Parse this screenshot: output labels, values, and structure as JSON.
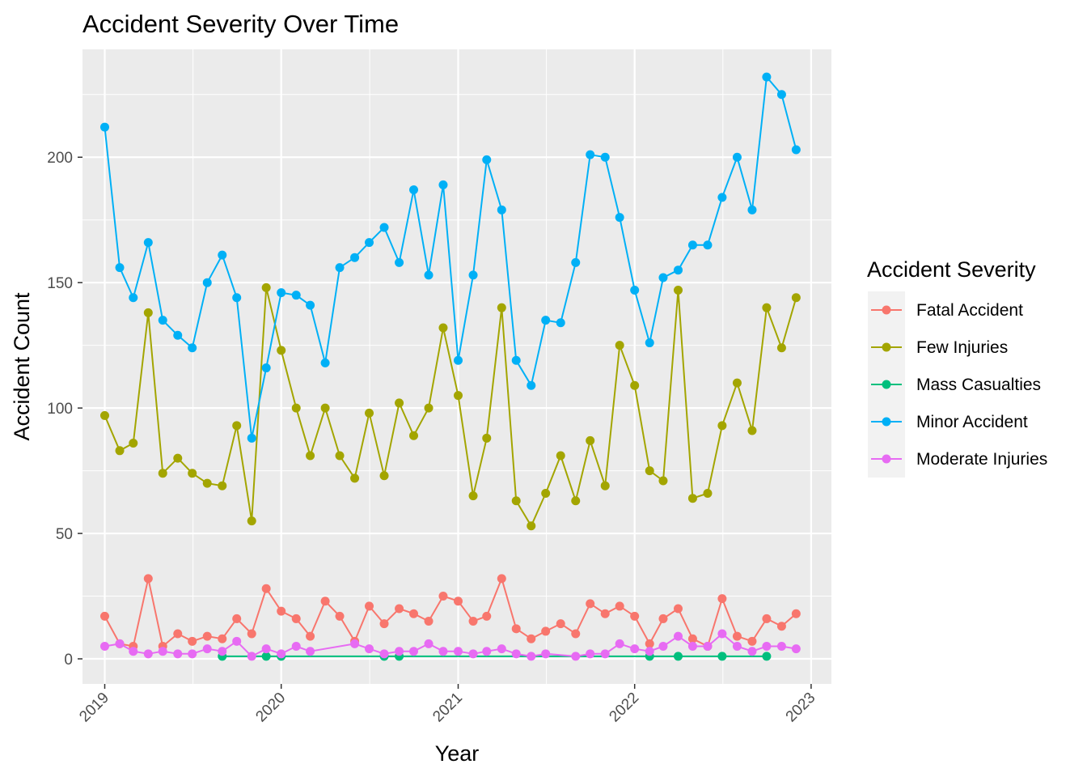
{
  "chart_data": {
    "type": "line",
    "title": "Accident Severity Over Time",
    "xlabel": "Year",
    "ylabel": "Accident Count",
    "x_ticks": [
      "2019",
      "2020",
      "2021",
      "2022",
      "2023"
    ],
    "y_ticks": [
      0,
      50,
      100,
      150,
      200
    ],
    "xlim": [
      "2018-11-16",
      "2023-02-12"
    ],
    "ylim": [
      -10,
      243
    ],
    "grid": true,
    "legend_title": "Accident Severity",
    "legend_position": "right",
    "series": [
      {
        "name": "Fatal Accident",
        "color": "#F8766D",
        "points": [
          [
            "2019-01-01",
            17
          ],
          [
            "2019-02-01",
            6
          ],
          [
            "2019-03-01",
            5
          ],
          [
            "2019-04-01",
            32
          ],
          [
            "2019-05-01",
            5
          ],
          [
            "2019-06-01",
            10
          ],
          [
            "2019-07-01",
            7
          ],
          [
            "2019-08-01",
            9
          ],
          [
            "2019-09-01",
            8
          ],
          [
            "2019-10-01",
            16
          ],
          [
            "2019-11-01",
            10
          ],
          [
            "2019-12-01",
            28
          ],
          [
            "2020-01-01",
            19
          ],
          [
            "2020-02-01",
            16
          ],
          [
            "2020-03-01",
            9
          ],
          [
            "2020-04-01",
            23
          ],
          [
            "2020-05-01",
            17
          ],
          [
            "2020-06-01",
            7
          ],
          [
            "2020-07-01",
            21
          ],
          [
            "2020-08-01",
            14
          ],
          [
            "2020-09-01",
            20
          ],
          [
            "2020-10-01",
            18
          ],
          [
            "2020-11-01",
            15
          ],
          [
            "2020-12-01",
            25
          ],
          [
            "2021-01-01",
            23
          ],
          [
            "2021-02-01",
            15
          ],
          [
            "2021-03-01",
            17
          ],
          [
            "2021-04-01",
            32
          ],
          [
            "2021-05-01",
            12
          ],
          [
            "2021-06-01",
            8
          ],
          [
            "2021-07-01",
            11
          ],
          [
            "2021-08-01",
            14
          ],
          [
            "2021-09-01",
            10
          ],
          [
            "2021-10-01",
            22
          ],
          [
            "2021-11-01",
            18
          ],
          [
            "2021-12-01",
            21
          ],
          [
            "2022-01-01",
            17
          ],
          [
            "2022-02-01",
            6
          ],
          [
            "2022-03-01",
            16
          ],
          [
            "2022-04-01",
            20
          ],
          [
            "2022-05-01",
            8
          ],
          [
            "2022-06-01",
            5
          ],
          [
            "2022-07-01",
            24
          ],
          [
            "2022-08-01",
            9
          ],
          [
            "2022-09-01",
            7
          ],
          [
            "2022-10-01",
            16
          ],
          [
            "2022-11-01",
            13
          ],
          [
            "2022-12-01",
            18
          ]
        ]
      },
      {
        "name": "Few Injuries",
        "color": "#A3A500",
        "points": [
          [
            "2019-01-01",
            97
          ],
          [
            "2019-02-01",
            83
          ],
          [
            "2019-03-01",
            86
          ],
          [
            "2019-04-01",
            138
          ],
          [
            "2019-05-01",
            74
          ],
          [
            "2019-06-01",
            80
          ],
          [
            "2019-07-01",
            74
          ],
          [
            "2019-08-01",
            70
          ],
          [
            "2019-09-01",
            69
          ],
          [
            "2019-10-01",
            93
          ],
          [
            "2019-11-01",
            55
          ],
          [
            "2019-12-01",
            148
          ],
          [
            "2020-01-01",
            123
          ],
          [
            "2020-02-01",
            100
          ],
          [
            "2020-03-01",
            81
          ],
          [
            "2020-04-01",
            100
          ],
          [
            "2020-05-01",
            81
          ],
          [
            "2020-06-01",
            72
          ],
          [
            "2020-07-01",
            98
          ],
          [
            "2020-08-01",
            73
          ],
          [
            "2020-09-01",
            102
          ],
          [
            "2020-10-01",
            89
          ],
          [
            "2020-11-01",
            100
          ],
          [
            "2020-12-01",
            132
          ],
          [
            "2021-01-01",
            105
          ],
          [
            "2021-02-01",
            65
          ],
          [
            "2021-03-01",
            88
          ],
          [
            "2021-04-01",
            140
          ],
          [
            "2021-05-01",
            63
          ],
          [
            "2021-06-01",
            53
          ],
          [
            "2021-07-01",
            66
          ],
          [
            "2021-08-01",
            81
          ],
          [
            "2021-09-01",
            63
          ],
          [
            "2021-10-01",
            87
          ],
          [
            "2021-11-01",
            69
          ],
          [
            "2021-12-01",
            125
          ],
          [
            "2022-01-01",
            109
          ],
          [
            "2022-02-01",
            75
          ],
          [
            "2022-03-01",
            71
          ],
          [
            "2022-04-01",
            147
          ],
          [
            "2022-05-01",
            64
          ],
          [
            "2022-06-01",
            66
          ],
          [
            "2022-07-01",
            93
          ],
          [
            "2022-08-01",
            110
          ],
          [
            "2022-09-01",
            91
          ],
          [
            "2022-10-01",
            140
          ],
          [
            "2022-11-01",
            124
          ],
          [
            "2022-12-01",
            144
          ]
        ]
      },
      {
        "name": "Mass Casualties",
        "color": "#00BF7D",
        "points": [
          [
            "2019-09-01",
            1
          ],
          [
            "2019-12-01",
            1
          ],
          [
            "2020-01-01",
            1
          ],
          [
            "2020-08-01",
            1
          ],
          [
            "2020-09-01",
            1
          ],
          [
            "2022-02-01",
            1
          ],
          [
            "2022-04-01",
            1
          ],
          [
            "2022-07-01",
            1
          ],
          [
            "2022-10-01",
            1
          ]
        ]
      },
      {
        "name": "Minor Accident",
        "color": "#00B0F6",
        "points": [
          [
            "2019-01-01",
            212
          ],
          [
            "2019-02-01",
            156
          ],
          [
            "2019-03-01",
            144
          ],
          [
            "2019-04-01",
            166
          ],
          [
            "2019-05-01",
            135
          ],
          [
            "2019-06-01",
            129
          ],
          [
            "2019-07-01",
            124
          ],
          [
            "2019-08-01",
            150
          ],
          [
            "2019-09-01",
            161
          ],
          [
            "2019-10-01",
            144
          ],
          [
            "2019-11-01",
            88
          ],
          [
            "2019-12-01",
            116
          ],
          [
            "2020-01-01",
            146
          ],
          [
            "2020-02-01",
            145
          ],
          [
            "2020-03-01",
            141
          ],
          [
            "2020-04-01",
            118
          ],
          [
            "2020-05-01",
            156
          ],
          [
            "2020-06-01",
            160
          ],
          [
            "2020-07-01",
            166
          ],
          [
            "2020-08-01",
            172
          ],
          [
            "2020-09-01",
            158
          ],
          [
            "2020-10-01",
            187
          ],
          [
            "2020-11-01",
            153
          ],
          [
            "2020-12-01",
            189
          ],
          [
            "2021-01-01",
            119
          ],
          [
            "2021-02-01",
            153
          ],
          [
            "2021-03-01",
            199
          ],
          [
            "2021-04-01",
            179
          ],
          [
            "2021-05-01",
            119
          ],
          [
            "2021-06-01",
            109
          ],
          [
            "2021-07-01",
            135
          ],
          [
            "2021-08-01",
            134
          ],
          [
            "2021-09-01",
            158
          ],
          [
            "2021-10-01",
            201
          ],
          [
            "2021-11-01",
            200
          ],
          [
            "2021-12-01",
            176
          ],
          [
            "2022-01-01",
            147
          ],
          [
            "2022-02-01",
            126
          ],
          [
            "2022-03-01",
            152
          ],
          [
            "2022-04-01",
            155
          ],
          [
            "2022-05-01",
            165
          ],
          [
            "2022-06-01",
            165
          ],
          [
            "2022-07-01",
            184
          ],
          [
            "2022-08-01",
            200
          ],
          [
            "2022-09-01",
            179
          ],
          [
            "2022-10-01",
            232
          ],
          [
            "2022-11-01",
            225
          ],
          [
            "2022-12-01",
            203
          ]
        ]
      },
      {
        "name": "Moderate Injuries",
        "color": "#E76BF3",
        "points": [
          [
            "2019-01-01",
            5
          ],
          [
            "2019-02-01",
            6
          ],
          [
            "2019-03-01",
            3
          ],
          [
            "2019-04-01",
            2
          ],
          [
            "2019-05-01",
            3
          ],
          [
            "2019-06-01",
            2
          ],
          [
            "2019-07-01",
            2
          ],
          [
            "2019-08-01",
            4
          ],
          [
            "2019-09-01",
            3
          ],
          [
            "2019-10-01",
            7
          ],
          [
            "2019-11-01",
            1
          ],
          [
            "2019-12-01",
            4
          ],
          [
            "2020-01-01",
            2
          ],
          [
            "2020-02-01",
            5
          ],
          [
            "2020-03-01",
            3
          ],
          [
            "2020-06-01",
            6
          ],
          [
            "2020-07-01",
            4
          ],
          [
            "2020-08-01",
            2
          ],
          [
            "2020-09-01",
            3
          ],
          [
            "2020-10-01",
            3
          ],
          [
            "2020-11-01",
            6
          ],
          [
            "2020-12-01",
            3
          ],
          [
            "2021-01-01",
            3
          ],
          [
            "2021-02-01",
            2
          ],
          [
            "2021-03-01",
            3
          ],
          [
            "2021-04-01",
            4
          ],
          [
            "2021-05-01",
            2
          ],
          [
            "2021-06-01",
            1
          ],
          [
            "2021-07-01",
            2
          ],
          [
            "2021-09-01",
            1
          ],
          [
            "2021-10-01",
            2
          ],
          [
            "2021-11-01",
            2
          ],
          [
            "2021-12-01",
            6
          ],
          [
            "2022-01-01",
            4
          ],
          [
            "2022-02-01",
            3
          ],
          [
            "2022-03-01",
            5
          ],
          [
            "2022-04-01",
            9
          ],
          [
            "2022-05-01",
            5
          ],
          [
            "2022-06-01",
            5
          ],
          [
            "2022-07-01",
            10
          ],
          [
            "2022-08-01",
            5
          ],
          [
            "2022-09-01",
            3
          ],
          [
            "2022-10-01",
            5
          ],
          [
            "2022-11-01",
            5
          ],
          [
            "2022-12-01",
            4
          ]
        ]
      }
    ]
  }
}
